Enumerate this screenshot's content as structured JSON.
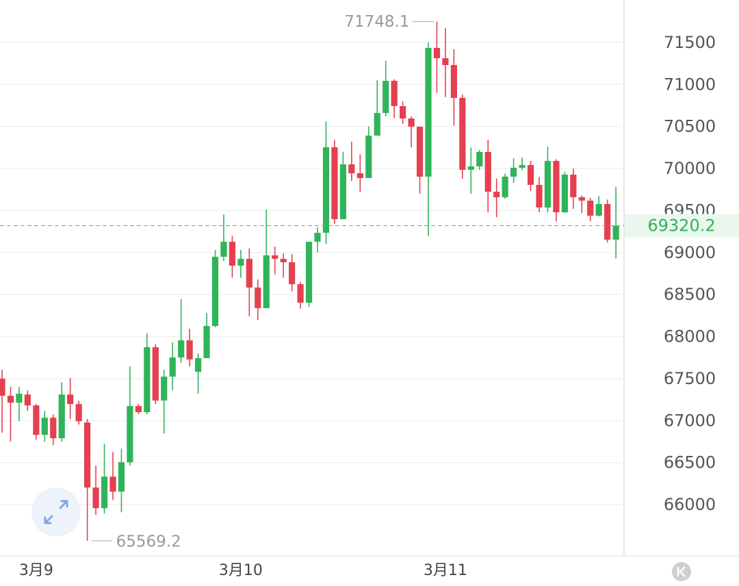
{
  "chart_data": {
    "type": "candlestick",
    "categories": [
      null,
      null,
      null,
      null,
      "3月9",
      null,
      null,
      null,
      null,
      null,
      null,
      null,
      null,
      null,
      null,
      null,
      null,
      null,
      null,
      null,
      null,
      null,
      null,
      null,
      null,
      null,
      null,
      null,
      "3月10",
      null,
      null,
      null,
      null,
      null,
      null,
      null,
      null,
      null,
      null,
      null,
      null,
      null,
      null,
      null,
      null,
      null,
      null,
      null,
      null,
      null,
      null,
      null,
      "3月11",
      null,
      null,
      null,
      null,
      null,
      null,
      null,
      null,
      null,
      null,
      null,
      null,
      null,
      null,
      null,
      null,
      null,
      null,
      null,
      null
    ],
    "open": [
      67499,
      67295,
      67213,
      67310,
      67180,
      66830,
      67034,
      66790,
      67310,
      67197,
      66977,
      66203,
      65958,
      66333,
      66154,
      66504,
      67173,
      67100,
      67873,
      67238,
      67523,
      67751,
      67955,
      67580,
      67743,
      68126,
      68949,
      69128,
      68843,
      68925,
      68583,
      68338,
      68966,
      68925,
      68884,
      68623,
      68403,
      69128,
      69234,
      70253,
      69397,
      70049,
      69943,
      69886,
      70391,
      70660,
      71043,
      70742,
      70595,
      70497,
      69903,
      71435,
      71312,
      71231,
      70840,
      69984,
      70025,
      70196,
      69723,
      69658,
      69903,
      70009,
      70041,
      69805,
      69536,
      70090,
      69479,
      69927,
      69658,
      69617,
      69438,
      69577,
      69153
    ],
    "high": [
      67605,
      67400,
      67400,
      67360,
      67197,
      67115,
      67075,
      67458,
      67507,
      67237,
      67018,
      66464,
      66724,
      66627,
      66667,
      67645,
      67197,
      68036,
      67906,
      67605,
      67930,
      68444,
      68093,
      67800,
      68280,
      69030,
      69453,
      69200,
      69030,
      69050,
      68680,
      69510,
      69070,
      68990,
      68980,
      68650,
      69128,
      69300,
      70560,
      70340,
      70200,
      70320,
      70170,
      70500,
      71050,
      71280,
      71060,
      70800,
      70620,
      70500,
      71500,
      71748.1,
      71670,
      71420,
      70880,
      70250,
      70220,
      70340,
      69880,
      69940,
      70120,
      70130,
      70090,
      69900,
      70260,
      70110,
      69960,
      70000,
      69680,
      69650,
      69670,
      69630,
      69780
    ],
    "low": [
      66855,
      66750,
      66993,
      67115,
      66773,
      66750,
      66708,
      66750,
      67018,
      66953,
      65569.2,
      65877,
      65893,
      66056,
      65909,
      66464,
      67075,
      67075,
      67197,
      66847,
      67360,
      67686,
      67645,
      67320,
      67743,
      68110,
      68900,
      68700,
      68700,
      68240,
      68200,
      68338,
      68740,
      68700,
      68540,
      68330,
      68350,
      69000,
      69100,
      69340,
      69397,
      69850,
      69720,
      69886,
      70391,
      70620,
      70600,
      70530,
      70250,
      69700,
      69194,
      70900,
      70850,
      70510,
      69880,
      69700,
      69984,
      69480,
      69420,
      69640,
      69830,
      69980,
      69730,
      69480,
      69480,
      69370,
      69470,
      69520,
      69470,
      69370,
      69430,
      69120,
      68930
    ],
    "close": [
      67295,
      67213,
      67320,
      67180,
      66830,
      67034,
      66790,
      67310,
      67197,
      66993,
      66203,
      65958,
      66333,
      66154,
      66504,
      67173,
      67100,
      67873,
      67238,
      67523,
      67751,
      67955,
      67727,
      67743,
      68126,
      68949,
      69128,
      68843,
      68925,
      68583,
      68338,
      68966,
      68925,
      68884,
      68623,
      68403,
      69128,
      69234,
      70253,
      69397,
      70049,
      69943,
      69886,
      70391,
      70660,
      71043,
      70742,
      70595,
      70497,
      69903,
      71435,
      71312,
      71231,
      70840,
      69984,
      70025,
      70196,
      69723,
      69658,
      69903,
      70009,
      70041,
      69805,
      69536,
      70090,
      69479,
      69927,
      69658,
      69617,
      69438,
      69577,
      69153,
      69320.2
    ],
    "up_color": "#2fb45a",
    "down_color": "#e5404f",
    "current_price": 69320.2,
    "ylim": [
      65390,
      72005
    ],
    "yticks": [
      66000,
      66500,
      67000,
      67500,
      68000,
      68500,
      69000,
      69500,
      70000,
      70500,
      71000,
      71500
    ],
    "grid": true
  }
}
